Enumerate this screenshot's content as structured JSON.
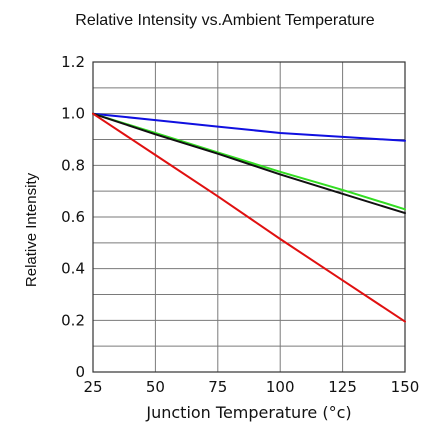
{
  "chart_data": {
    "type": "line",
    "title": "Relative Intensity vs.Ambient Temperature",
    "xlabel": "Junction Temperature (°c)",
    "ylabel": "Relative Intensity",
    "xlim": [
      25,
      150
    ],
    "ylim": [
      0,
      1.2
    ],
    "x_ticks": [
      "25",
      "50",
      "75",
      "100",
      "125",
      "150"
    ],
    "y_ticks": [
      "0",
      "0.2",
      "0.4",
      "0.6",
      "0.8",
      "1.0",
      "1.2"
    ],
    "grid": true,
    "legend": false,
    "series": [
      {
        "color": "#1010e0",
        "x": [
          25,
          50,
          75,
          100,
          125,
          150
        ],
        "y": [
          1.0,
          0.975,
          0.95,
          0.925,
          0.91,
          0.895
        ]
      },
      {
        "color": "#33dd22",
        "x": [
          25,
          50,
          75,
          100,
          125,
          150
        ],
        "y": [
          1.0,
          0.925,
          0.85,
          0.775,
          0.705,
          0.63
        ]
      },
      {
        "color": "#111111",
        "x": [
          25,
          50,
          75,
          100,
          125,
          150
        ],
        "y": [
          1.0,
          0.92,
          0.845,
          0.765,
          0.69,
          0.615
        ]
      },
      {
        "color": "#e01010",
        "x": [
          25,
          50,
          75,
          100,
          125,
          150
        ],
        "y": [
          1.0,
          0.84,
          0.68,
          0.515,
          0.355,
          0.195
        ]
      }
    ]
  }
}
